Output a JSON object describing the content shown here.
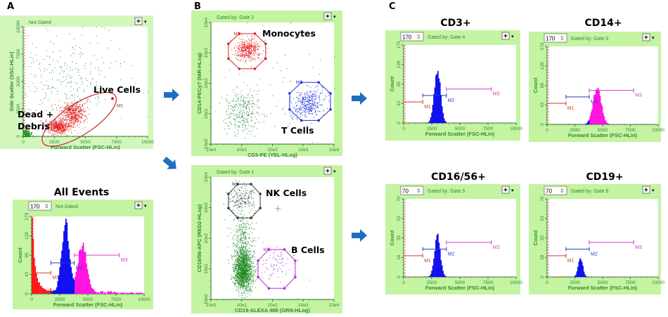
{
  "panel_letters": {
    "a": "A",
    "b": "B",
    "c": "C"
  },
  "colors": {
    "frame": "#c4f3a2",
    "frame_border": "#86d35e",
    "axis_text": "#2f8a2f",
    "arrow": "#1f6fc0",
    "m1": "#d23a2a",
    "m2": "#2a3fb8",
    "m3": "#d040c8"
  },
  "chart_data": [
    {
      "id": "fsc-ssc",
      "type": "scatter",
      "title": "",
      "gate_text": "Not Gated",
      "xlabel": "Forward Scatter (FSC-HLin)",
      "ylabel": "Side Scatter (SSC-HLin)",
      "scale": "linear",
      "xlim": [
        0,
        10000
      ],
      "ylim": [
        0,
        10000
      ],
      "xticks": [
        "0",
        "2500",
        "5000",
        "7500",
        "10000"
      ],
      "yticks": [
        "0",
        "2500",
        "5000",
        "7500",
        "10000"
      ],
      "clusters": [
        {
          "color": "#1f8f1f",
          "cx": 200,
          "cy": 200,
          "sx": 220,
          "sy": 220,
          "n": 260
        },
        {
          "color": "#e42020",
          "cx": 2800,
          "cy": 900,
          "sx": 450,
          "sy": 320,
          "n": 500
        },
        {
          "color": "#e42020",
          "cx": 4000,
          "cy": 2100,
          "sx": 500,
          "sy": 600,
          "n": 500
        },
        {
          "color": "#2a8a3a",
          "cx": 3500,
          "cy": 5000,
          "sx": 2200,
          "sy": 2200,
          "n": 330
        }
      ],
      "gates": [
        {
          "label": "M1",
          "shape": "ellipse",
          "color": "#c42a2a",
          "from": [
            1600,
            -600
          ],
          "to": [
            7400,
            3700
          ],
          "aspect": 0.36
        }
      ],
      "annotations": [
        "Live Cells",
        "Dead +",
        "Debris"
      ]
    },
    {
      "id": "all-events",
      "type": "histogram",
      "title": "All Events",
      "gate_text": "Not Gated",
      "count_box": "170",
      "xlabel": "Forward Scatter (FSC-HLin)",
      "ylabel": "Count",
      "xlim": [
        0,
        10000
      ],
      "ylim": [
        0,
        170
      ],
      "xticks": [
        "0",
        "2500",
        "5000",
        "7500",
        "10000"
      ],
      "yticks": [
        "0",
        "43",
        "85",
        "128",
        "170"
      ],
      "peaks": [
        {
          "center": 0,
          "sd": 250,
          "height": 170
        },
        {
          "center": 3000,
          "sd": 330,
          "height": 155
        },
        {
          "center": 4500,
          "sd": 400,
          "height": 105
        }
      ],
      "baseline": 6,
      "markers": [
        {
          "label": "M1",
          "range": [
            0,
            1700
          ],
          "level": 46
        },
        {
          "label": "M2",
          "range": [
            1700,
            3800
          ],
          "level": 68
        },
        {
          "label": "M3",
          "range": [
            3800,
            7800
          ],
          "level": 85
        }
      ]
    },
    {
      "id": "cd3-cd14",
      "type": "scatter",
      "title": "",
      "gate_text": "Gated by: Gate 2",
      "xlabel": "CD3-PE (YEL-HLog)",
      "ylabel": "CD14-PECy7 (NIR-HLog)",
      "scale": "log",
      "xlim": [
        1,
        10000
      ],
      "ylim": [
        1,
        10000
      ],
      "xticks": [
        "10e0",
        "10e1",
        "10e2",
        "10e3",
        "10e4"
      ],
      "yticks": [
        "10e0",
        "10e1",
        "10e2",
        "10e3",
        "10e4"
      ],
      "clusters": [
        {
          "color": "#e42020",
          "cx": 15,
          "cy": 1300,
          "sd_decades": [
            0.2,
            0.18
          ],
          "n": 420
        },
        {
          "color": "#1f2fd8",
          "cx": 1350,
          "cy": 21,
          "sd_decades": [
            0.22,
            0.2
          ],
          "n": 380
        },
        {
          "color": "#2a8a3a",
          "cx": 11,
          "cy": 11,
          "sd_decades": [
            0.3,
            0.35
          ],
          "n": 320
        },
        {
          "color": "#2a8a3a",
          "cx": 100,
          "cy": 100,
          "sd_decades": [
            1.0,
            0.9
          ],
          "n": 50
        }
      ],
      "gates": [
        {
          "label": "M1",
          "shape": "octagon",
          "color": "#d02a2a",
          "x": [
            3.7,
            60
          ],
          "y": [
            300,
            4300
          ]
        },
        {
          "label": "M2",
          "shape": "octagon",
          "color": "#2a36c8",
          "x": [
            360,
            7700
          ],
          "y": [
            6,
            107
          ]
        }
      ],
      "annotations": [
        "Monocytes",
        "T Cells"
      ]
    },
    {
      "id": "cd19-cd1656",
      "type": "scatter",
      "title": "",
      "gate_text": "Gated by: Gate 1",
      "xlabel": "CD19-ALEXA 488 (GRN-HLog)",
      "ylabel": "CD16/56-APC (RED2-HLog)",
      "scale": "log",
      "xlim": [
        1,
        10000
      ],
      "ylim": [
        1,
        10000
      ],
      "xticks": [
        "10e0",
        "10e1",
        "10e2",
        "10e3",
        "10e4"
      ],
      "yticks": [
        "10e0",
        "10e1",
        "10e2",
        "10e3",
        "10e4"
      ],
      "clusters": [
        {
          "color": "#1e4a2e",
          "cx": 10,
          "cy": 2000,
          "sd_decades": [
            0.22,
            0.22
          ],
          "n": 170
        },
        {
          "color": "#1f8a1f",
          "cx": 11,
          "cy": 9,
          "sd_decades": [
            0.15,
            0.33
          ],
          "n": 1500
        },
        {
          "color": "#2a8a3a",
          "cx": 11,
          "cy": 100,
          "sd_decades": [
            0.18,
            0.45
          ],
          "n": 350
        },
        {
          "color": "#a030c0",
          "cx": 125,
          "cy": 15,
          "sd_decades": [
            0.28,
            0.3
          ],
          "n": 90
        }
      ],
      "gates": [
        {
          "label": "M1",
          "shape": "octagon",
          "color": "#2a3d3a",
          "x": [
            3.7,
            40
          ],
          "y": [
            465,
            5900
          ]
        },
        {
          "label": "M2",
          "shape": "octagon",
          "color": "#b030d0",
          "x": [
            34,
            550
          ],
          "y": [
            2.3,
            43
          ]
        }
      ],
      "annotations": [
        "NK Cells",
        "B Cells"
      ]
    },
    {
      "id": "cd3",
      "type": "histogram",
      "title": "CD3+",
      "gate_text": "Gated by: Gate 4",
      "count_box": "170",
      "xlabel": "Forward Scatter (FSC-HLin)",
      "ylabel": "Count",
      "xlim": [
        0,
        10000
      ],
      "ylim": [
        0,
        170
      ],
      "xticks": [
        "0",
        "2500",
        "5000",
        "7500",
        "10000"
      ],
      "yticks": [
        "0",
        "43",
        "85",
        "128",
        "170"
      ],
      "peaks": [
        {
          "center": 3000,
          "sd": 270,
          "height": 118
        }
      ],
      "baseline": 0.5,
      "markers": [
        {
          "label": "M1",
          "range": [
            0,
            1700
          ],
          "level": 46
        },
        {
          "label": "M2",
          "range": [
            1700,
            3800
          ],
          "level": 60
        },
        {
          "label": "M3",
          "range": [
            3800,
            7800
          ],
          "level": 74
        }
      ]
    },
    {
      "id": "cd14",
      "type": "histogram",
      "title": "CD14+",
      "gate_text": "Gated by: Gate 3",
      "count_box": "170",
      "xlabel": "Forward Scatter (FSC-HLin)",
      "ylabel": "Count",
      "xlim": [
        0,
        10000
      ],
      "ylim": [
        0,
        170
      ],
      "xticks": [
        "0",
        "2500",
        "5000",
        "7500",
        "10000"
      ],
      "yticks": [
        "0",
        "43",
        "85",
        "128",
        "170"
      ],
      "peaks": [
        {
          "center": 4500,
          "sd": 360,
          "height": 80
        }
      ],
      "baseline": 0.5,
      "markers": [
        {
          "label": "M1",
          "range": [
            0,
            1700
          ],
          "level": 46
        },
        {
          "label": "M2",
          "range": [
            1700,
            3800
          ],
          "level": 60
        },
        {
          "label": "M3",
          "range": [
            3800,
            7800
          ],
          "level": 74
        }
      ]
    },
    {
      "id": "cd1656",
      "type": "histogram",
      "title": "CD16/56+",
      "gate_text": "Gated by: Gate 5",
      "count_box": "70",
      "xlabel": "Forward Scatter (FSC-HLin)",
      "ylabel": "Count",
      "xlim": [
        0,
        10000
      ],
      "ylim": [
        0,
        70
      ],
      "xticks": [
        "0",
        "2500",
        "5000",
        "7500",
        "10000"
      ],
      "yticks": [
        "0",
        "18",
        "35",
        "53",
        "70"
      ],
      "peaks": [
        {
          "center": 3000,
          "sd": 250,
          "height": 37
        }
      ],
      "baseline": 0.3,
      "markers": [
        {
          "label": "M1",
          "range": [
            0,
            1700
          ],
          "level": 19
        },
        {
          "label": "M2",
          "range": [
            1700,
            3800
          ],
          "level": 25
        },
        {
          "label": "M3",
          "range": [
            3800,
            7800
          ],
          "level": 31
        }
      ]
    },
    {
      "id": "cd19",
      "type": "histogram",
      "title": "CD19+",
      "gate_text": "Gated by: Gate 6",
      "count_box": "70",
      "xlabel": "Forward Scatter (FSC-HLin)",
      "ylabel": "Count",
      "xlim": [
        0,
        10000
      ],
      "ylim": [
        0,
        70
      ],
      "xticks": [
        "0",
        "2500",
        "5000",
        "7500",
        "10000"
      ],
      "yticks": [
        "0",
        "18",
        "35",
        "53",
        "70"
      ],
      "peaks": [
        {
          "center": 3000,
          "sd": 200,
          "height": 17
        }
      ],
      "baseline": 0.2,
      "markers": [
        {
          "label": "M1",
          "range": [
            0,
            1700
          ],
          "level": 19
        },
        {
          "label": "M2",
          "range": [
            1700,
            3800
          ],
          "level": 25
        },
        {
          "label": "M3",
          "range": [
            3800,
            7800
          ],
          "level": 31
        }
      ]
    }
  ]
}
